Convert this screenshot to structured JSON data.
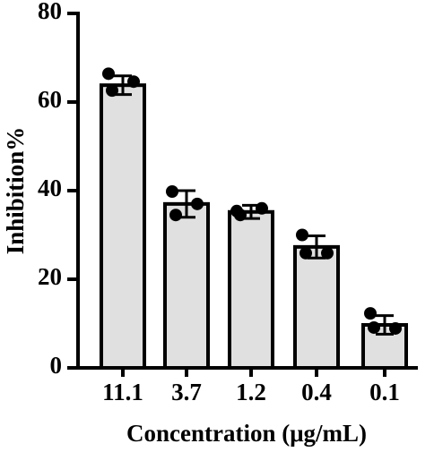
{
  "chart_data": {
    "type": "bar",
    "x_label": "Concentration (μg/mL)",
    "y_label": "Inhibition%",
    "categories": [
      "11.1",
      "3.7",
      "1.2",
      "0.4",
      "0.1"
    ],
    "values": [
      63.8,
      37,
      35.2,
      27.3,
      9.7
    ],
    "errors": [
      2.1,
      3.0,
      1.5,
      2.5,
      2.1
    ],
    "points": [
      [
        66.4,
        62.6,
        64.6
      ],
      [
        39.8,
        34.5,
        37
      ],
      [
        35.4,
        34.5,
        36
      ],
      [
        30,
        25.9,
        25.9
      ],
      [
        12.3,
        9.1,
        8.9
      ]
    ],
    "color": "#e0e0e0",
    "ylim": [
      0,
      80
    ],
    "yticks": [
      0,
      20,
      40,
      60,
      80
    ]
  }
}
